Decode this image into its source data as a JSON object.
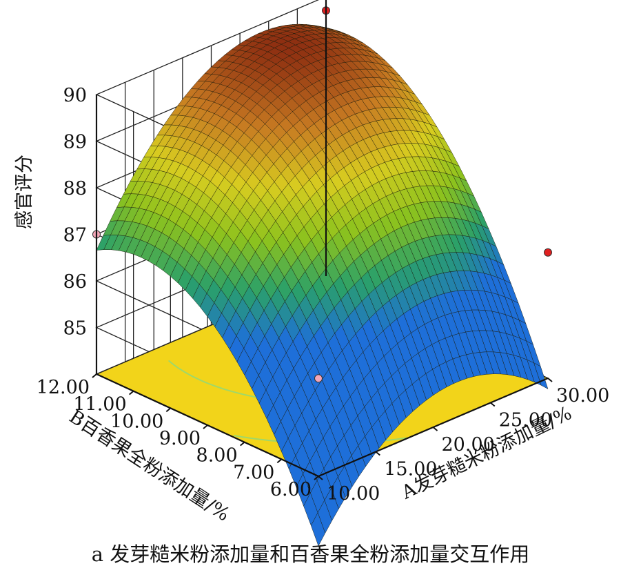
{
  "chart_data": {
    "type": "surface3d",
    "title": "",
    "caption": "a 发芽糙米粉添加量和百香果全粉添加量交互作用",
    "zlabel": "感官评分",
    "xlabel": "A发芽糙米粉添加量/%",
    "ylabel": "B百香果全粉添加量/%",
    "xlim": [
      10,
      30
    ],
    "ylim": [
      6,
      12
    ],
    "zlim": [
      85,
      90
    ],
    "x_ticks": [
      "10.00",
      "15.00",
      "20.00",
      "25.00",
      "30.00"
    ],
    "y_ticks": [
      "6.00",
      "7.00",
      "8.00",
      "9.00",
      "10.00",
      "11.00",
      "12.00"
    ],
    "z_ticks": [
      "85",
      "86",
      "87",
      "88",
      "89",
      "90"
    ],
    "points": [
      {
        "A": 10,
        "B": 12,
        "score": 87.0,
        "color": "#f4a6b8"
      },
      {
        "A": 10,
        "B": 6,
        "score": 86.1,
        "color": "#f4a6b8"
      },
      {
        "A": 30,
        "B": 6,
        "score": 86.7,
        "color": "#e02020"
      },
      {
        "A": 30,
        "B": 12,
        "score": 89.7,
        "color": "#e02020"
      }
    ],
    "surface_colors": [
      "#1e6fd9",
      "#2aa06a",
      "#8cc21e",
      "#d8cc20",
      "#c77a22",
      "#8a2a10"
    ],
    "floor_color": "#f2d41a",
    "contour_color": "#9fd86a"
  }
}
